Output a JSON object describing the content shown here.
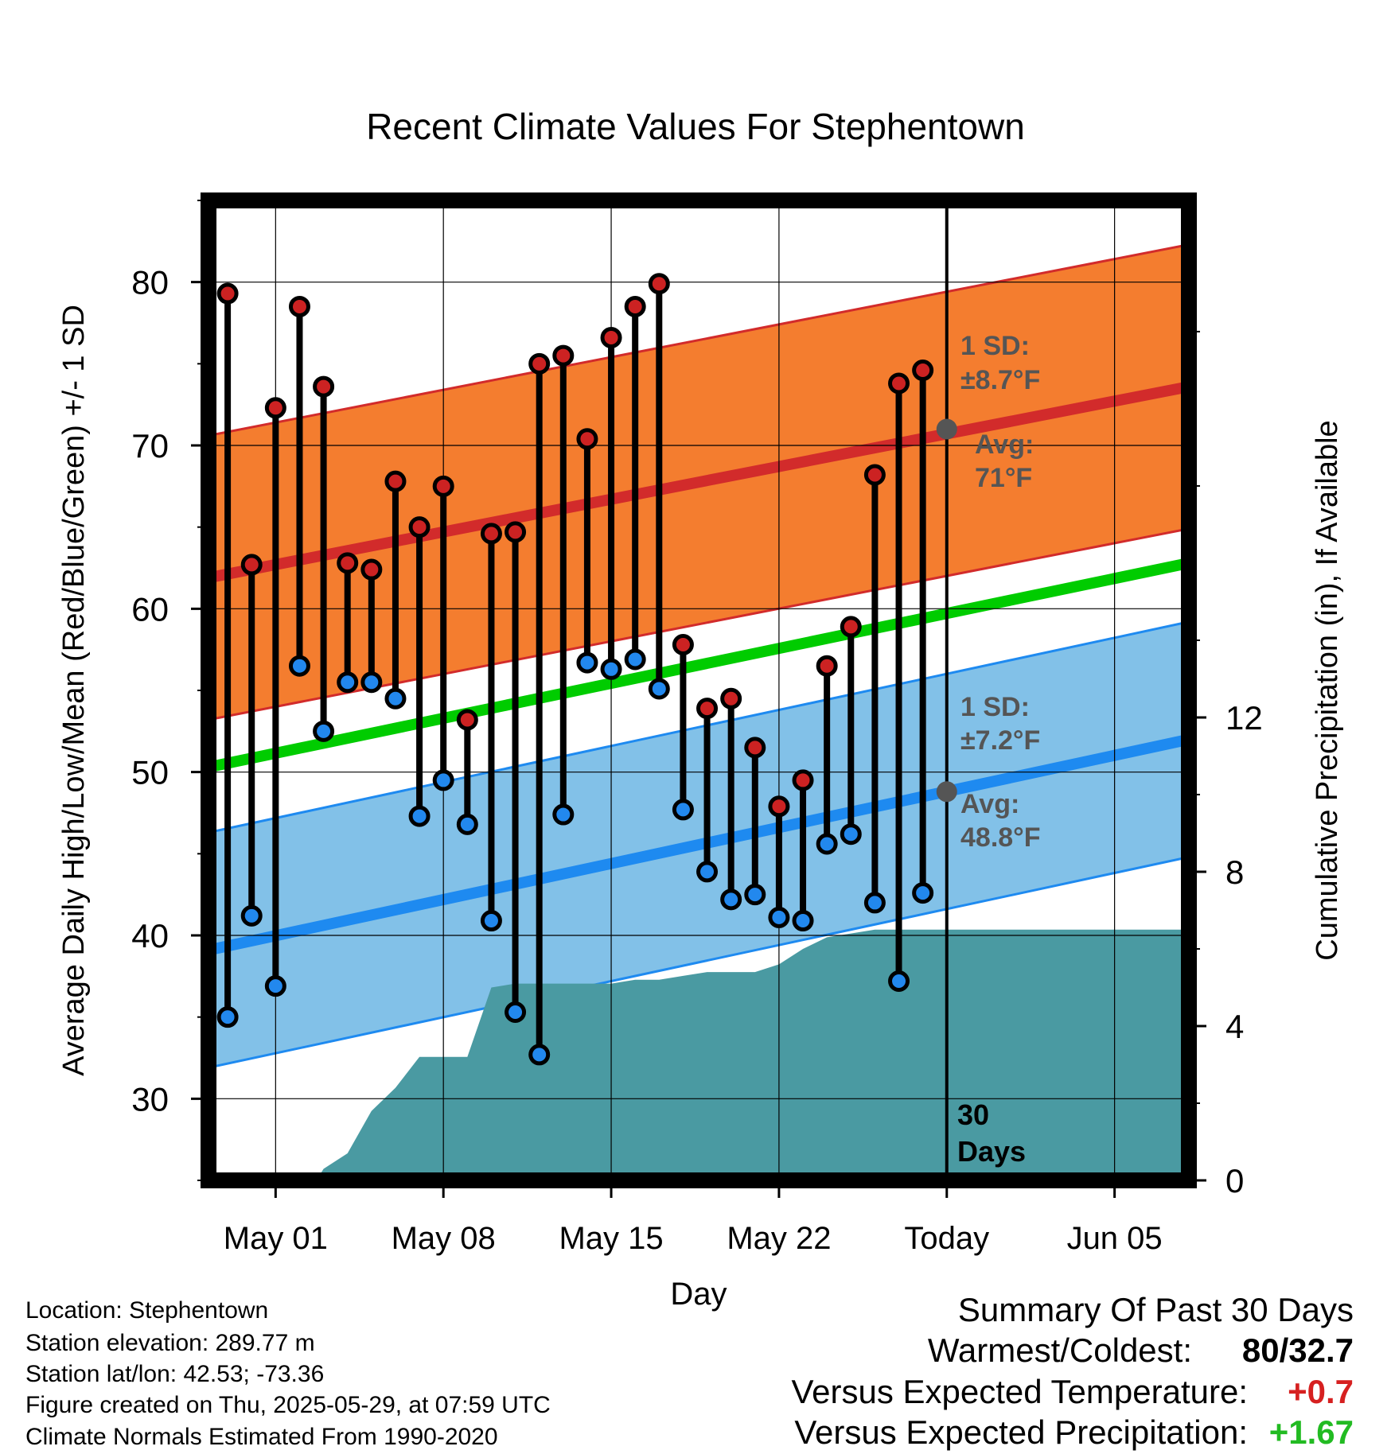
{
  "chart_data": {
    "type": "climate-range",
    "title": "Recent Climate Values For Stephentown",
    "xlabel": "Day",
    "ylabel": "Average Daily High/Low/Mean (Red/Blue/Green) +/- 1 SD",
    "y2label": "Cumulative Precipitation (in), If Available",
    "x_ticks": [
      "May 01",
      "May 08",
      "May 15",
      "May 22",
      "Today",
      "Jun 05"
    ],
    "y_ticks": [
      "30",
      "40",
      "50",
      "60",
      "70",
      "80"
    ],
    "y2_ticks": [
      "0",
      "4",
      "8",
      "12"
    ],
    "xlim_days_from_may01": [
      -2.8,
      38.1
    ],
    "ylim": [
      25,
      85
    ],
    "y2lim": [
      0,
      25.4
    ],
    "today_days_from_may01": 28,
    "days_from_may01": [
      -2,
      -1,
      0,
      1,
      2,
      3,
      4,
      5,
      6,
      7,
      8,
      9,
      10,
      11,
      12,
      13,
      14,
      15,
      16,
      17,
      18,
      19,
      20,
      21,
      22,
      23,
      24,
      25,
      26,
      27,
      28
    ],
    "daily_high": [
      79.3,
      62.7,
      72.3,
      78.5,
      73.6,
      62.8,
      62.4,
      67.8,
      65.0,
      67.5,
      53.2,
      64.6,
      64.7,
      75.0,
      75.5,
      70.4,
      76.6,
      78.5,
      79.9,
      57.8,
      53.9,
      54.5,
      51.5,
      47.9,
      49.5,
      56.5,
      58.9,
      68.2,
      73.8,
      74.6
    ],
    "daily_low": [
      35.0,
      41.2,
      36.9,
      56.5,
      52.5,
      55.5,
      55.5,
      54.5,
      47.3,
      49.5,
      46.8,
      40.9,
      35.3,
      32.7,
      47.4,
      56.7,
      56.3,
      56.9,
      55.1,
      47.7,
      43.9,
      42.2,
      42.5,
      41.1,
      40.9,
      45.6,
      46.2,
      42.0,
      37.2,
      42.6
    ],
    "normal_high": {
      "x": [
        -2.8,
        38.1
      ],
      "values": [
        61.9,
        73.6
      ],
      "sd_label": "1 SD:",
      "sd_value": "±8.7°F",
      "avg_label": "Avg:",
      "avg_value": "71°F",
      "sd": 8.7,
      "today": 71.0
    },
    "normal_mean": {
      "x": [
        -2.8,
        38.1
      ],
      "values": [
        50.3,
        62.8
      ]
    },
    "normal_low": {
      "x": [
        -2.8,
        38.1
      ],
      "values": [
        39.1,
        52.0
      ],
      "sd_label": "1 SD:",
      "sd_value": "±7.2°F",
      "avg_label": "Avg:",
      "avg_value": "48.8°F",
      "sd": 7.2,
      "today": 48.8
    },
    "precip_cumulative": {
      "x": [
        -2.8,
        1.7,
        2.0,
        3.0,
        4.0,
        5.0,
        6.0,
        7.0,
        8.0,
        9.0,
        10.0,
        11.0,
        12.0,
        13.0,
        14.0,
        15.0,
        16.0,
        17.0,
        18.0,
        19.0,
        20.0,
        21.0,
        22.0,
        23.0,
        24.0,
        25.0,
        26.0,
        27.0,
        28.0,
        38.1
      ],
      "values": [
        0.0,
        0.0,
        0.3,
        0.7,
        1.8,
        2.4,
        3.2,
        3.2,
        3.2,
        5.0,
        5.1,
        5.1,
        5.1,
        5.1,
        5.1,
        5.2,
        5.2,
        5.3,
        5.4,
        5.4,
        5.4,
        5.6,
        6.0,
        6.3,
        6.4,
        6.5,
        6.5,
        6.5,
        6.5,
        6.5
      ]
    },
    "today_label": [
      "30",
      "Days"
    ],
    "grid": true,
    "legend": "none"
  },
  "info": {
    "location": "Location: Stephentown",
    "elevation": "Station elevation: 289.77 m",
    "latlon": "Station lat/lon: 42.53; -73.36",
    "created": "Figure created on Thu, 2025-05-29, at 07:59 UTC",
    "normals": "Climate Normals Estimated From 1990-2020"
  },
  "summary": {
    "heading": "Summary Of Past 30 Days",
    "warmest_label": "Warmest/Coldest:",
    "warmest_value": "80/32.7",
    "temp_label": "Versus Expected Temperature:",
    "temp_value": "+0.7",
    "precip_label": "Versus Expected Precipitation:",
    "precip_value": "+1.67"
  },
  "colors": {
    "high_fill": "#f47d2f",
    "high_line": "#d22b2b",
    "low_fill": "#82c1e8",
    "low_line": "#1e8af0",
    "mean_line": "#00cc00",
    "precip_fill": "#4a9aa2",
    "high_dot": "#cc2222",
    "low_dot": "#2288ee",
    "annot": "#555555",
    "positive_temp": "#d62020",
    "positive_precip": "#22bb22"
  }
}
